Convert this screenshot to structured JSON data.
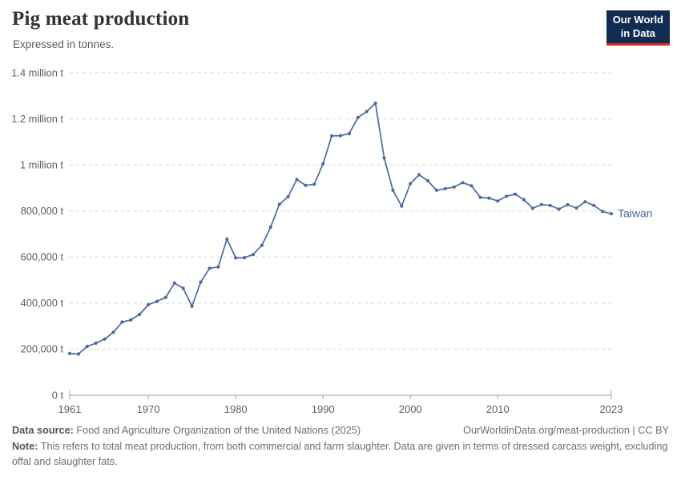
{
  "header": {
    "title": "Pig meat production",
    "subtitle": "Expressed in tonnes.",
    "logo_line1": "Our World",
    "logo_line2": "in Data"
  },
  "chart_data": {
    "type": "line",
    "title": "Pig meat production",
    "subtitle": "Expressed in tonnes.",
    "unit": "tonnes",
    "xlim": [
      1961,
      2023
    ],
    "ylim": [
      0,
      1400000
    ],
    "grid": "horizontal-dashed",
    "legend_position": "line-end-label",
    "x_ticks": [
      1961,
      1970,
      1980,
      1990,
      2000,
      2010,
      2023
    ],
    "y_ticks": [
      {
        "value": 0,
        "label": "0 t"
      },
      {
        "value": 200000,
        "label": "200,000 t"
      },
      {
        "value": 400000,
        "label": "400,000 t"
      },
      {
        "value": 600000,
        "label": "600,000 t"
      },
      {
        "value": 800000,
        "label": "800,000 t"
      },
      {
        "value": 1000000,
        "label": "1 million t"
      },
      {
        "value": 1200000,
        "label": "1.2 million t"
      },
      {
        "value": 1400000,
        "label": "1.4 million t"
      }
    ],
    "series": [
      {
        "name": "Taiwan",
        "color": "#4C6A9D",
        "x": [
          1961,
          1962,
          1963,
          1964,
          1965,
          1966,
          1967,
          1968,
          1969,
          1970,
          1971,
          1972,
          1973,
          1974,
          1975,
          1976,
          1977,
          1978,
          1979,
          1980,
          1981,
          1982,
          1983,
          1984,
          1985,
          1986,
          1987,
          1988,
          1989,
          1990,
          1991,
          1992,
          1993,
          1994,
          1995,
          1996,
          1997,
          1998,
          1999,
          2000,
          2001,
          2002,
          2003,
          2004,
          2005,
          2006,
          2007,
          2008,
          2009,
          2010,
          2011,
          2012,
          2013,
          2014,
          2015,
          2016,
          2017,
          2018,
          2019,
          2020,
          2021,
          2022,
          2023
        ],
        "values": [
          181000,
          179000,
          212000,
          226000,
          244000,
          273000,
          318000,
          327000,
          351000,
          393000,
          408000,
          425000,
          487000,
          464000,
          386000,
          491000,
          551000,
          557000,
          678000,
          596000,
          597000,
          611000,
          651000,
          730000,
          829000,
          862000,
          937000,
          911000,
          916000,
          1005000,
          1126000,
          1127000,
          1136000,
          1206000,
          1232000,
          1268000,
          1030000,
          890000,
          821000,
          919000,
          957000,
          931000,
          890000,
          897000,
          904000,
          923000,
          909000,
          859000,
          856000,
          843000,
          864000,
          873000,
          849000,
          812000,
          828000,
          824000,
          808000,
          827000,
          813000,
          840000,
          824000,
          798000,
          788000
        ]
      }
    ]
  },
  "footer": {
    "datasource_label": "Data source:",
    "datasource_text": " Food and Agriculture Organization of the United Nations (2025)",
    "link": "OurWorldinData.org/meat-production | CC BY",
    "note_label": "Note:",
    "note_text": " This refers to total meat production, from both commercial and farm slaughter. Data are given in terms of dressed carcass weight, excluding offal and slaughter fats."
  },
  "colors": {
    "line": "#4C6A9D",
    "grid": "#d8d8d8",
    "axis": "#a0a0a0",
    "logo_bg": "#102C50",
    "logo_accent": "#DC2B1E",
    "title_text": "#333333",
    "tick_text": "#5d5d5d"
  }
}
